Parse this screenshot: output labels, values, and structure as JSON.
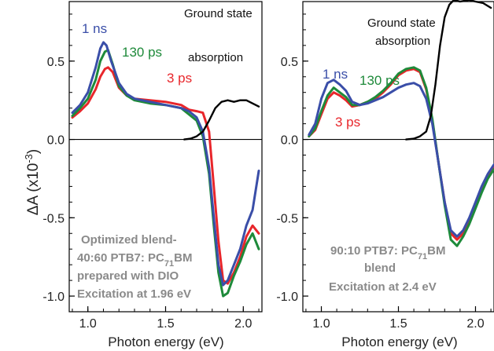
{
  "ylabel_main": "ΔA (x10",
  "ylabel_exp": "-3",
  "ylabel_close": ")",
  "chart_data": [
    {
      "type": "line",
      "panel": "left",
      "xlabel": "Photon energy (eV)",
      "ylabel": "ΔA (x10⁻³)",
      "xlim": [
        0.88,
        2.12
      ],
      "ylim": [
        -1.1,
        0.88
      ],
      "xticks": [
        1.0,
        1.5,
        2.0
      ],
      "xtick_labels": [
        "1.0",
        "1.5",
        "2.0"
      ],
      "yticks": [
        -1.0,
        -0.5,
        0.0,
        0.5
      ],
      "ytick_labels": [
        "-1.0",
        "-0.5",
        "0.0",
        "0.5"
      ],
      "zero_line": true,
      "series": [
        {
          "name": "3 ps",
          "color": "#e8262b",
          "x": [
            0.9,
            0.95,
            1.0,
            1.05,
            1.08,
            1.11,
            1.13,
            1.16,
            1.2,
            1.25,
            1.3,
            1.4,
            1.5,
            1.6,
            1.65,
            1.7,
            1.74,
            1.78,
            1.81,
            1.84,
            1.87,
            1.9,
            1.94,
            1.98,
            2.02,
            2.06,
            2.1
          ],
          "y": [
            0.14,
            0.18,
            0.23,
            0.32,
            0.4,
            0.45,
            0.46,
            0.43,
            0.33,
            0.28,
            0.26,
            0.25,
            0.24,
            0.22,
            0.19,
            0.18,
            0.17,
            0.05,
            -0.3,
            -0.65,
            -0.9,
            -0.92,
            -0.85,
            -0.75,
            -0.62,
            -0.55,
            -0.6
          ]
        },
        {
          "name": "130 ps",
          "color": "#1e8a3a",
          "x": [
            0.9,
            0.95,
            1.0,
            1.05,
            1.08,
            1.11,
            1.13,
            1.16,
            1.2,
            1.25,
            1.3,
            1.4,
            1.5,
            1.6,
            1.65,
            1.7,
            1.74,
            1.78,
            1.81,
            1.84,
            1.87,
            1.9,
            1.94,
            1.98,
            2.02,
            2.06,
            2.1
          ],
          "y": [
            0.15,
            0.2,
            0.26,
            0.38,
            0.5,
            0.56,
            0.57,
            0.48,
            0.34,
            0.28,
            0.25,
            0.23,
            0.22,
            0.2,
            0.16,
            0.12,
            0.02,
            -0.22,
            -0.55,
            -0.85,
            -1.0,
            -0.98,
            -0.87,
            -0.78,
            -0.67,
            -0.6,
            -0.7
          ]
        },
        {
          "name": "1 ns",
          "color": "#3a4ea8",
          "x": [
            0.9,
            0.95,
            1.0,
            1.05,
            1.08,
            1.1,
            1.12,
            1.15,
            1.2,
            1.25,
            1.3,
            1.4,
            1.5,
            1.6,
            1.65,
            1.7,
            1.74,
            1.78,
            1.81,
            1.84,
            1.87,
            1.9,
            1.94,
            1.98,
            2.02,
            2.06,
            2.1
          ],
          "y": [
            0.17,
            0.22,
            0.3,
            0.46,
            0.58,
            0.62,
            0.6,
            0.5,
            0.36,
            0.29,
            0.26,
            0.24,
            0.22,
            0.2,
            0.18,
            0.14,
            0.05,
            -0.18,
            -0.5,
            -0.8,
            -0.93,
            -0.9,
            -0.8,
            -0.7,
            -0.55,
            -0.45,
            -0.2
          ]
        },
        {
          "name": "Ground state absorption",
          "color": "#000000",
          "x": [
            1.62,
            1.66,
            1.7,
            1.74,
            1.78,
            1.82,
            1.86,
            1.9,
            1.94,
            1.98,
            2.02,
            2.06,
            2.1
          ],
          "y": [
            0.0,
            0.005,
            0.02,
            0.05,
            0.12,
            0.2,
            0.24,
            0.25,
            0.24,
            0.25,
            0.25,
            0.23,
            0.21
          ]
        }
      ]
    },
    {
      "type": "line",
      "panel": "right",
      "xlabel": "Photon energy (eV)",
      "xlim": [
        0.88,
        2.12
      ],
      "ylim": [
        -1.1,
        0.88
      ],
      "xticks": [
        1.0,
        1.5,
        2.0
      ],
      "xtick_labels": [
        "1.0",
        "1.5",
        "2.0"
      ],
      "yticks": [
        -1.0,
        -0.5,
        0.0,
        0.5
      ],
      "ytick_labels": [
        "-1.0",
        "-0.5",
        "0.0",
        "0.5"
      ],
      "zero_line": true,
      "series": [
        {
          "name": "3 ps",
          "color": "#e8262b",
          "x": [
            0.92,
            0.96,
            1.0,
            1.04,
            1.08,
            1.12,
            1.16,
            1.2,
            1.25,
            1.3,
            1.35,
            1.4,
            1.45,
            1.5,
            1.55,
            1.6,
            1.64,
            1.68,
            1.72,
            1.76,
            1.8,
            1.84,
            1.88,
            1.92,
            1.96,
            2.0,
            2.04,
            2.08,
            2.12
          ],
          "y": [
            0.02,
            0.06,
            0.16,
            0.26,
            0.3,
            0.28,
            0.25,
            0.21,
            0.22,
            0.24,
            0.26,
            0.3,
            0.35,
            0.41,
            0.44,
            0.45,
            0.43,
            0.32,
            0.12,
            -0.15,
            -0.4,
            -0.6,
            -0.64,
            -0.6,
            -0.52,
            -0.42,
            -0.32,
            -0.24,
            -0.18
          ]
        },
        {
          "name": "130 ps",
          "color": "#1e8a3a",
          "x": [
            0.92,
            0.96,
            1.0,
            1.04,
            1.08,
            1.12,
            1.16,
            1.2,
            1.25,
            1.3,
            1.35,
            1.4,
            1.45,
            1.5,
            1.55,
            1.6,
            1.64,
            1.68,
            1.72,
            1.76,
            1.8,
            1.84,
            1.88,
            1.92,
            1.96,
            2.0,
            2.04,
            2.08,
            2.12
          ],
          "y": [
            0.02,
            0.07,
            0.18,
            0.28,
            0.33,
            0.3,
            0.27,
            0.22,
            0.22,
            0.24,
            0.27,
            0.31,
            0.36,
            0.42,
            0.45,
            0.46,
            0.44,
            0.33,
            0.13,
            -0.15,
            -0.42,
            -0.64,
            -0.68,
            -0.62,
            -0.54,
            -0.44,
            -0.34,
            -0.25,
            -0.19
          ]
        },
        {
          "name": "1 ns",
          "color": "#3a4ea8",
          "x": [
            0.92,
            0.96,
            1.0,
            1.04,
            1.08,
            1.12,
            1.16,
            1.2,
            1.25,
            1.3,
            1.35,
            1.4,
            1.45,
            1.5,
            1.55,
            1.6,
            1.64,
            1.68,
            1.72,
            1.76,
            1.8,
            1.84,
            1.88,
            1.92,
            1.96,
            2.0,
            2.04,
            2.08,
            2.12
          ],
          "y": [
            0.03,
            0.1,
            0.26,
            0.36,
            0.38,
            0.35,
            0.31,
            0.24,
            0.22,
            0.23,
            0.25,
            0.27,
            0.3,
            0.33,
            0.35,
            0.36,
            0.34,
            0.26,
            0.1,
            -0.15,
            -0.4,
            -0.58,
            -0.62,
            -0.58,
            -0.5,
            -0.4,
            -0.3,
            -0.22,
            -0.16
          ]
        },
        {
          "name": "Ground state absorption",
          "color": "#000000",
          "x": [
            1.55,
            1.6,
            1.64,
            1.68,
            1.71,
            1.74,
            1.77,
            1.8,
            1.83,
            1.86,
            1.9,
            1.96,
            2.0,
            2.05,
            2.1
          ],
          "y": [
            0.0,
            0.005,
            0.02,
            0.05,
            0.15,
            0.35,
            0.6,
            0.78,
            0.86,
            0.89,
            0.88,
            0.89,
            0.88,
            0.87,
            0.84
          ]
        }
      ]
    }
  ],
  "annotations": {
    "left": {
      "label_1ns": "1 ns",
      "label_130ps": "130 ps",
      "label_3ps": "3 ps",
      "gsa_line1": "Ground state",
      "gsa_line2": "absorption",
      "note_line1": "Optimized blend-",
      "note_line2a": "40:60 PTB7: PC",
      "note_line2_sub": "71",
      "note_line2b": "BM",
      "note_line3": "prepared with DIO",
      "note_line4": "Excitation at 1.96 eV"
    },
    "right": {
      "label_1ns": "1 ns",
      "label_130ps": "130 ps",
      "label_3ps": "3 ps",
      "gsa_line1": "Ground state",
      "gsa_line2": "absorption",
      "note_line1a": "90:10 PTB7: PC",
      "note_line1_sub": "71",
      "note_line1b": "BM",
      "note_line2": "blend",
      "note_line3": "Excitation at 2.4 eV"
    }
  },
  "colors": {
    "1ns": "#3a4ea8",
    "130ps": "#1e8a3a",
    "3ps": "#e8262b",
    "ground_state": "#000000",
    "note": "#8a8a8a"
  }
}
